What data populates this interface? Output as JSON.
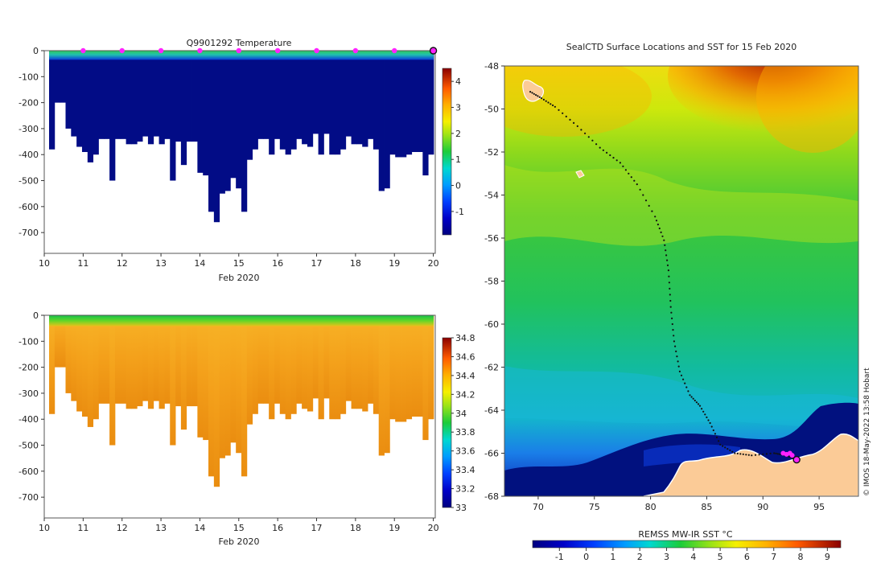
{
  "chart_data": [
    {
      "type": "heatmap",
      "title": "Q9901292  Temperature",
      "xlabel": "Feb 2020",
      "x_ticks": [
        "10",
        "11",
        "12",
        "13",
        "14",
        "15",
        "16",
        "17",
        "18",
        "19",
        "20"
      ],
      "xlim": [
        10,
        20.05
      ],
      "ylabel": "",
      "y_ticks": [
        "0",
        "-100",
        "-200",
        "-300",
        "-400",
        "-500",
        "-600",
        "-700"
      ],
      "ylim": [
        -780,
        0
      ],
      "colorbar_ticks": [
        "4",
        "3",
        "2",
        "1",
        "0",
        "-1"
      ],
      "colorbar_range": [
        -1.9,
        4.5
      ],
      "surface_marker_days": [
        11,
        12,
        13,
        14,
        15,
        16,
        17,
        18,
        19
      ],
      "last_position_day": 20,
      "profile_depths_m": [
        -380,
        -200,
        -200,
        -300,
        -330,
        -370,
        -390,
        -430,
        -400,
        -340,
        -340,
        -500,
        -340,
        -340,
        -360,
        -360,
        -350,
        -330,
        -360,
        -330,
        -360,
        -340,
        -500,
        -350,
        -440,
        -350,
        -350,
        -470,
        -480,
        -620,
        -660,
        -550,
        -540,
        -490,
        -530,
        -620,
        -420,
        -380,
        -340,
        -340,
        -400,
        -340,
        -380,
        -400,
        -380,
        -340,
        -360,
        -370,
        -320,
        -400,
        -320,
        -400,
        -400,
        -380,
        -330,
        -360,
        -360,
        -370,
        -340,
        -380,
        -540,
        -530,
        -400,
        -410,
        -410,
        -400,
        -390,
        -390,
        -480,
        -400
      ],
      "profile_temps": "Deep water mostly below 0 °C (dark blue); a warmer surface layer of about 1 to 3 °C (cyan, green) in the top ~30 m"
    },
    {
      "type": "heatmap",
      "title": "",
      "xlabel": "Feb 2020",
      "x_ticks": [
        "10",
        "11",
        "12",
        "13",
        "14",
        "15",
        "16",
        "17",
        "18",
        "19",
        "20"
      ],
      "xlim": [
        10,
        20.05
      ],
      "y_ticks": [
        "0",
        "-100",
        "-200",
        "-300",
        "-400",
        "-500",
        "-600",
        "-700"
      ],
      "ylim": [
        -780,
        0
      ],
      "colorbar_ticks": [
        "34.8",
        "34.6",
        "34.4",
        "34.2",
        "34",
        "33.8",
        "33.6",
        "33.4",
        "33.2",
        "33"
      ],
      "colorbar_range": [
        33.0,
        34.8
      ],
      "profile_salinity": "Surface layer about 33.6 to 33.9 (green, cyan) from 0 to ~40 m; below that 34.3 to 34.5 (orange)"
    },
    {
      "type": "heatmap",
      "title": "SealCTD Surface Locations and SST for 15 Feb 2020",
      "xlabel": "",
      "x_ticks": [
        "70",
        "75",
        "80",
        "85",
        "90",
        "95"
      ],
      "xlim": [
        67,
        98.5
      ],
      "y_ticks": [
        "-48",
        "-50",
        "-52",
        "-54",
        "-56",
        "-58",
        "-60",
        "-62",
        "-64",
        "-66",
        "-68"
      ],
      "ylim": [
        -68,
        -48
      ],
      "colorbar_label": "REMSS MW-IR SST °C",
      "colorbar_ticks": [
        "-1",
        "0",
        "1",
        "2",
        "3",
        "4",
        "5",
        "6",
        "7",
        "8",
        "9"
      ],
      "colorbar_range": [
        -2,
        9.5
      ],
      "track": [
        [
          69.3,
          -49.2
        ],
        [
          70.3,
          -49.5
        ],
        [
          71.5,
          -49.9
        ],
        [
          73.5,
          -50.8
        ],
        [
          75.5,
          -51.8
        ],
        [
          77.3,
          -52.5
        ],
        [
          78.8,
          -53.5
        ],
        [
          80.4,
          -55.0
        ],
        [
          81.2,
          -56.1
        ],
        [
          81.6,
          -57.5
        ],
        [
          81.8,
          -59.2
        ],
        [
          82.1,
          -60.8
        ],
        [
          82.6,
          -62.2
        ],
        [
          83.5,
          -63.3
        ],
        [
          84.4,
          -63.8
        ],
        [
          85.3,
          -64.6
        ],
        [
          86.2,
          -65.6
        ],
        [
          87.5,
          -66.0
        ],
        [
          89.0,
          -66.1
        ],
        [
          91.0,
          -66.0
        ],
        [
          92.0,
          -66.1
        ],
        [
          93.0,
          -66.3
        ]
      ],
      "recent_positions": [
        [
          91.8,
          -66.0
        ],
        [
          92.1,
          -66.05
        ],
        [
          92.4,
          -66.0
        ],
        [
          92.6,
          -66.1
        ]
      ],
      "current_position": [
        93.0,
        -66.3
      ],
      "credit": "© IMOS 18-May-2022 13:58 Hobart"
    }
  ],
  "colors": {
    "surface_marker": "#ff22ff",
    "land": "#fbcb97",
    "track": "#111111"
  }
}
